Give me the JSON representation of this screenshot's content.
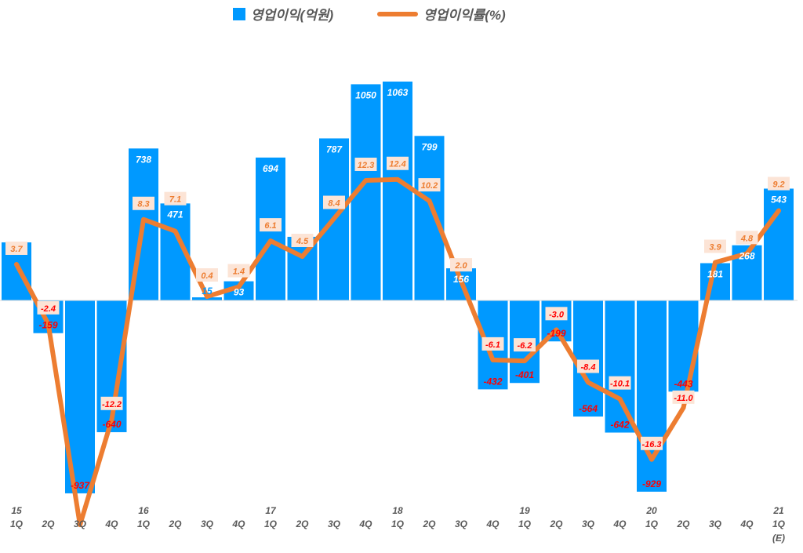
{
  "chart_data": {
    "type": "bar+line",
    "legend": {
      "placement": "top",
      "entries": [
        "영업이익(억원)",
        "영업이익률(%)"
      ]
    },
    "categories": [
      [
        "15",
        "1Q"
      ],
      [
        "",
        "2Q"
      ],
      [
        "",
        "3Q"
      ],
      [
        "",
        "4Q"
      ],
      [
        "16",
        "1Q"
      ],
      [
        "",
        "2Q"
      ],
      [
        "",
        "3Q"
      ],
      [
        "",
        "4Q"
      ],
      [
        "17",
        "1Q"
      ],
      [
        "",
        "2Q"
      ],
      [
        "",
        "3Q"
      ],
      [
        "",
        "4Q"
      ],
      [
        "18",
        "1Q"
      ],
      [
        "",
        "2Q"
      ],
      [
        "",
        "3Q"
      ],
      [
        "",
        "4Q"
      ],
      [
        "19",
        "1Q"
      ],
      [
        "",
        "2Q"
      ],
      [
        "",
        "3Q"
      ],
      [
        "",
        "4Q"
      ],
      [
        "20",
        "1Q"
      ],
      [
        "",
        "2Q"
      ],
      [
        "",
        "3Q"
      ],
      [
        "",
        "4Q"
      ],
      [
        "21",
        "1Q",
        "(E)"
      ]
    ],
    "series": [
      {
        "name": "영업이익(억원)",
        "type": "bar",
        "color": "#0099FF",
        "values": [
          282,
          -159,
          -937,
          -640,
          738,
          471,
          15,
          93,
          694,
          309,
          787,
          1050,
          1063,
          799,
          156,
          -432,
          -401,
          -199,
          -564,
          -642,
          -929,
          -443,
          181,
          268,
          543
        ],
        "labels": [
          "",
          "-159",
          "-937",
          "-640",
          "738",
          "471",
          "15",
          "93",
          "694",
          "",
          "787",
          "1050",
          "1063",
          "799",
          "156",
          "-432",
          "-401",
          "-199",
          "-564",
          "-642",
          "-929",
          "-443",
          "181",
          "268",
          "543"
        ]
      },
      {
        "name": "영업이익률(%)",
        "type": "line",
        "color": "#ED7D31",
        "values": [
          3.7,
          -2.4,
          -23,
          -12.2,
          8.3,
          7.1,
          0.4,
          1.4,
          6.1,
          4.5,
          8.4,
          12.3,
          12.4,
          10.2,
          2.0,
          -6.1,
          -6.2,
          -3.0,
          -8.4,
          -10.1,
          -16.3,
          -11.0,
          3.9,
          4.8,
          9.2
        ],
        "labels": [
          "3.7",
          "-2.4",
          "",
          "-12.2",
          "8.3",
          "7.1",
          "0.4",
          "1.4",
          "6.1",
          "4.5",
          "8.4",
          "12.3",
          "12.4",
          "10.2",
          "2.0",
          "-6.1",
          "-6.2",
          "-3.0",
          "-8.4",
          "-10.1",
          "-16.3",
          "-11.0",
          "3.9",
          "4.8",
          "9.2"
        ]
      }
    ],
    "colors": {
      "positive_label": "#FFFFFF",
      "negative_label": "#FF0000",
      "pct_label_bg": "#FCE4D6"
    }
  }
}
